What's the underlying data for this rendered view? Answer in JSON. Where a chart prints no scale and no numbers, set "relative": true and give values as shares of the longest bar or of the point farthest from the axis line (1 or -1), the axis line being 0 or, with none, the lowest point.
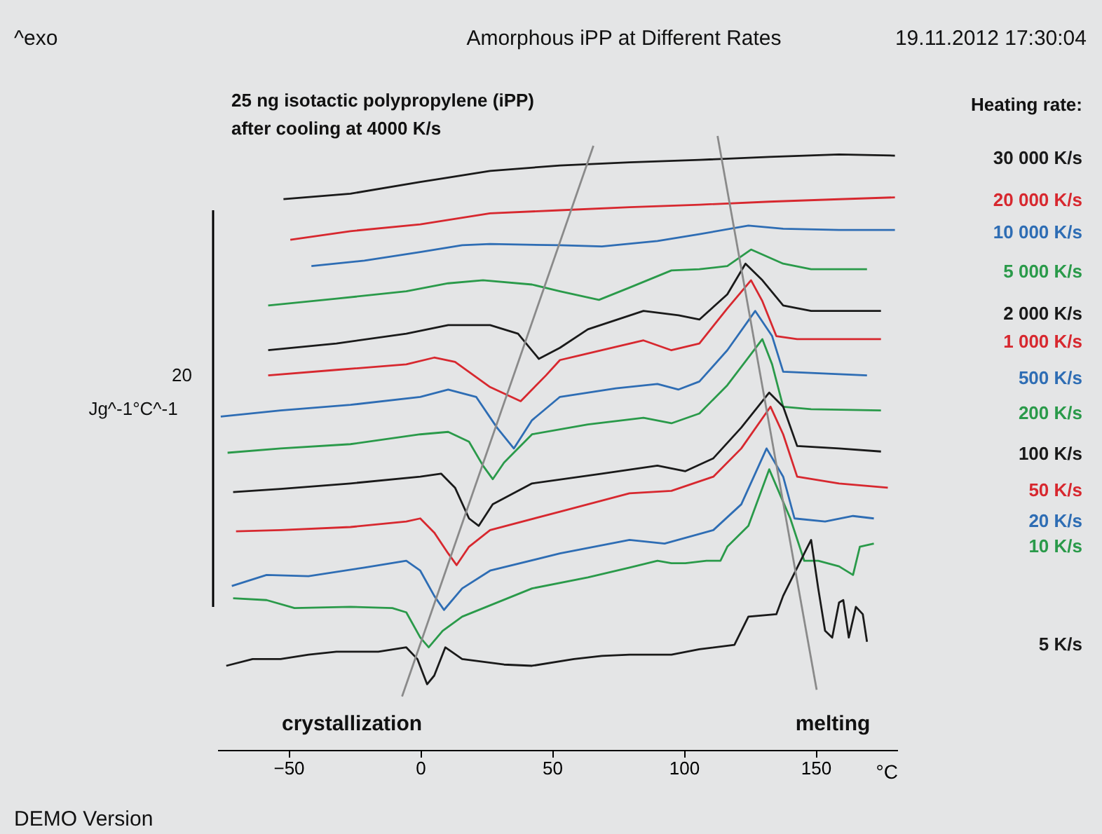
{
  "chart_data": {
    "type": "line",
    "relative": true,
    "title": "Amorphous iPP at Different Rates",
    "xlabel": "°C",
    "ylabel": "20 Jg^-1°C^-1",
    "legend_title": "Heating rate:",
    "xlim": [
      -77,
      181
    ],
    "xticks": [
      -50,
      0,
      50,
      100,
      150
    ],
    "line_style": "solid",
    "annotations": [
      "^exo",
      "19.11.2012 17:30:04",
      "25 ng isotactic polypropylene (iPP)",
      "after cooling at 4000 K/s",
      "DEMO Version",
      "crystallization",
      "melting"
    ],
    "series": [
      {
        "name": "30 000 K/s",
        "color": "#1a1a1a",
        "x": [
          -51.9,
          -26.5,
          0,
          26.5,
          53,
          79.4,
          105.9,
          132.4,
          158.9,
          180.1
        ],
        "values": [
          0.897,
          0.906,
          0.925,
          0.943,
          0.952,
          0.957,
          0.961,
          0.966,
          0.97,
          0.968
        ]
      },
      {
        "name": "20 000 K/s",
        "color": "#d7282f",
        "x": [
          -49.3,
          -26.5,
          0,
          26.5,
          53,
          79.4,
          105.9,
          132.4,
          158.9,
          180.1
        ],
        "values": [
          0.831,
          0.845,
          0.856,
          0.874,
          0.879,
          0.884,
          0.888,
          0.893,
          0.897,
          0.9
        ]
      },
      {
        "name": "10 000 K/s",
        "color": "#2e6db4",
        "x": [
          -41.3,
          -21.2,
          0,
          15.9,
          26.5,
          53,
          68.9,
          90,
          105.9,
          124.5,
          137.7,
          158.9,
          180.1
        ],
        "values": [
          0.788,
          0.797,
          0.811,
          0.822,
          0.824,
          0.822,
          0.82,
          0.829,
          0.84,
          0.854,
          0.849,
          0.847,
          0.847
        ]
      },
      {
        "name": "5 000 K/s",
        "color": "#2a9a4a",
        "x": [
          -57.7,
          -31.8,
          -5.3,
          10.6,
          23.8,
          42.4,
          53,
          67.8,
          79.4,
          95.3,
          105.9,
          116.5,
          125.5,
          137.7,
          148.3,
          169.5
        ],
        "values": [
          0.724,
          0.735,
          0.747,
          0.76,
          0.765,
          0.758,
          0.747,
          0.733,
          0.753,
          0.781,
          0.783,
          0.788,
          0.815,
          0.792,
          0.783,
          0.783
        ]
      },
      {
        "name": "2 000 K/s",
        "color": "#1a1a1a",
        "x": [
          -57.7,
          -31.8,
          -5.3,
          10.6,
          26.5,
          37.1,
          45,
          53,
          63.6,
          84.7,
          98,
          105.9,
          116.5,
          123.4,
          129.8,
          137.7,
          148.3,
          174.8
        ],
        "values": [
          0.651,
          0.662,
          0.678,
          0.692,
          0.692,
          0.678,
          0.637,
          0.655,
          0.685,
          0.715,
          0.708,
          0.701,
          0.742,
          0.792,
          0.765,
          0.724,
          0.715,
          0.715
        ]
      },
      {
        "name": "1 000 K/s",
        "color": "#d7282f",
        "x": [
          -57.7,
          -31.8,
          -5.3,
          5.3,
          13.2,
          26.5,
          38.1,
          47.7,
          53,
          68.9,
          84.7,
          95.3,
          105.9,
          116.5,
          125.5,
          129.8,
          135.1,
          143,
          174.8
        ],
        "values": [
          0.61,
          0.619,
          0.628,
          0.639,
          0.632,
          0.591,
          0.568,
          0.61,
          0.635,
          0.651,
          0.667,
          0.651,
          0.662,
          0.719,
          0.765,
          0.731,
          0.674,
          0.669,
          0.669
        ]
      },
      {
        "name": "500 K/s",
        "color": "#2e6db4",
        "x": [
          -75.7,
          -53,
          -26.5,
          0,
          10.6,
          21.2,
          29.1,
          35.5,
          42.4,
          53,
          74.2,
          90,
          98,
          105.9,
          116.5,
          127.1,
          133.5,
          137.7,
          158.9,
          169.5
        ],
        "values": [
          0.543,
          0.553,
          0.562,
          0.575,
          0.587,
          0.575,
          0.525,
          0.491,
          0.537,
          0.575,
          0.589,
          0.596,
          0.587,
          0.6,
          0.651,
          0.715,
          0.674,
          0.616,
          0.612,
          0.61
        ]
      },
      {
        "name": "200 K/s",
        "color": "#2a9a4a",
        "x": [
          -73.1,
          -53,
          -26.5,
          0,
          10.6,
          18.5,
          23.8,
          27.5,
          31.8,
          42.4,
          63.6,
          84.7,
          95.3,
          105.9,
          116.5,
          129.8,
          133.5,
          137.7,
          148.3,
          174.8
        ],
        "values": [
          0.484,
          0.491,
          0.498,
          0.514,
          0.518,
          0.502,
          0.463,
          0.441,
          0.468,
          0.514,
          0.53,
          0.541,
          0.532,
          0.548,
          0.594,
          0.669,
          0.628,
          0.559,
          0.555,
          0.553
        ]
      },
      {
        "name": "100 K/s",
        "color": "#1a1a1a",
        "x": [
          -71,
          -53,
          -26.5,
          0,
          7.9,
          13.2,
          18.5,
          22.2,
          27.5,
          42.4,
          68.9,
          90,
          100.6,
          111.2,
          121.8,
          132.4,
          137.7,
          143,
          158.9,
          174.8
        ],
        "values": [
          0.42,
          0.425,
          0.434,
          0.445,
          0.45,
          0.427,
          0.377,
          0.365,
          0.4,
          0.434,
          0.45,
          0.463,
          0.454,
          0.475,
          0.525,
          0.582,
          0.559,
          0.495,
          0.491,
          0.486
        ]
      },
      {
        "name": "50 K/s",
        "color": "#d7282f",
        "x": [
          -69.9,
          -53,
          -26.5,
          -5.3,
          0,
          5.3,
          10.6,
          13.8,
          18.5,
          26.5,
          53,
          79.4,
          95.3,
          111.2,
          121.8,
          132.9,
          137.7,
          143,
          158.9,
          177.4
        ],
        "values": [
          0.356,
          0.358,
          0.363,
          0.372,
          0.377,
          0.354,
          0.32,
          0.301,
          0.331,
          0.358,
          0.388,
          0.418,
          0.422,
          0.445,
          0.491,
          0.559,
          0.514,
          0.445,
          0.434,
          0.427
        ]
      },
      {
        "name": "20 K/s",
        "color": "#2e6db4",
        "x": [
          -71.5,
          -58.3,
          -42.4,
          -21.2,
          -5.3,
          0,
          5.3,
          9,
          15.9,
          26.5,
          53,
          79.4,
          92.7,
          111.2,
          121.8,
          131.4,
          137.7,
          142,
          153.6,
          164.2,
          172.1
        ],
        "values": [
          0.267,
          0.285,
          0.283,
          0.297,
          0.308,
          0.292,
          0.251,
          0.228,
          0.263,
          0.292,
          0.32,
          0.342,
          0.336,
          0.358,
          0.4,
          0.491,
          0.445,
          0.377,
          0.372,
          0.381,
          0.377
        ]
      },
      {
        "name": "10 K/s",
        "color": "#2a9a4a",
        "x": [
          -71,
          -58.3,
          -47.7,
          -26.5,
          -10.6,
          -5.3,
          0,
          3.2,
          8.5,
          15.9,
          42.4,
          63.6,
          79.4,
          90,
          95.3,
          100.6,
          108.6,
          113.9,
          116.5,
          124.5,
          132.4,
          137.7,
          140.4,
          145.7,
          151,
          158.9,
          164.2,
          166.8,
          172.1
        ],
        "values": [
          0.247,
          0.244,
          0.231,
          0.233,
          0.231,
          0.224,
          0.183,
          0.167,
          0.194,
          0.217,
          0.263,
          0.281,
          0.297,
          0.308,
          0.304,
          0.304,
          0.308,
          0.308,
          0.331,
          0.365,
          0.457,
          0.404,
          0.377,
          0.308,
          0.308,
          0.299,
          0.285,
          0.331,
          0.336
        ]
      },
      {
        "name": "5 K/s",
        "color": "#1a1a1a",
        "x": [
          -73.6,
          -63.6,
          -53,
          -42.4,
          -31.8,
          -15.9,
          -5.3,
          -1.1,
          2.6,
          5.3,
          9.5,
          15.9,
          31.8,
          42.4,
          58.3,
          68.9,
          79.4,
          95.3,
          105.9,
          119.2,
          124.5,
          135.1,
          137.7,
          145.7,
          148.3,
          151,
          153.6,
          156.3,
          158.9,
          160.5,
          162.6,
          165.3,
          167.9,
          169.5
        ],
        "values": [
          0.137,
          0.148,
          0.148,
          0.155,
          0.16,
          0.16,
          0.167,
          0.148,
          0.107,
          0.121,
          0.167,
          0.148,
          0.139,
          0.137,
          0.148,
          0.153,
          0.155,
          0.155,
          0.164,
          0.171,
          0.217,
          0.221,
          0.251,
          0.32,
          0.342,
          0.263,
          0.194,
          0.183,
          0.24,
          0.244,
          0.183,
          0.233,
          0.221,
          0.176
        ]
      },
      {
        "color": "#8a8a8a",
        "x": [
          -6.9,
          65.7
        ],
        "values": [
          0.087,
          0.984
        ]
      },
      {
        "color": "#8a8a8a",
        "x": [
          112.8,
          150.4
        ],
        "values": [
          1.0,
          0.098
        ]
      }
    ]
  }
}
